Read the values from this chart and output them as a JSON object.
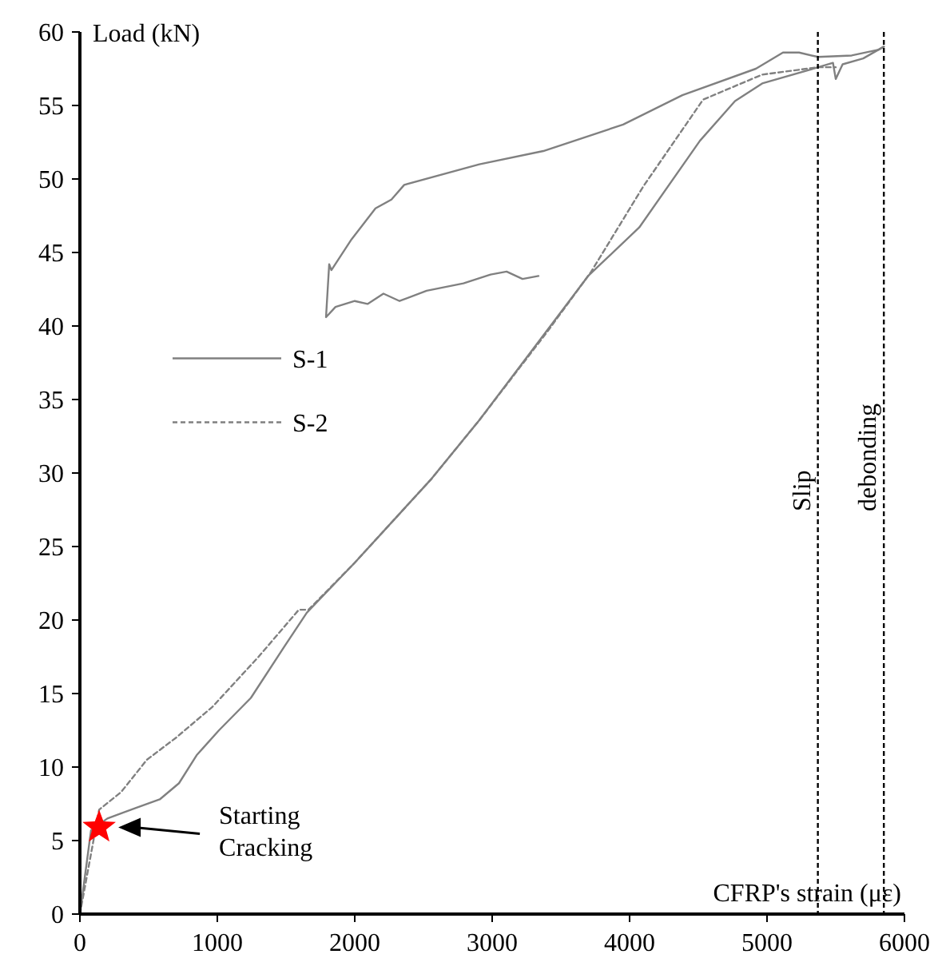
{
  "chart_data": {
    "type": "line",
    "xlabel": "CFRP's strain (με)",
    "ylabel": "Load (kN)",
    "xlim": [
      0,
      6000
    ],
    "xticks": [
      0,
      1000,
      2000,
      3000,
      4000,
      5000,
      6000
    ],
    "ylim": [
      0,
      60
    ],
    "yticks": [
      0,
      5,
      10,
      15,
      20,
      25,
      30,
      35,
      40,
      45,
      50,
      55,
      60
    ],
    "grid": false,
    "legend": "left",
    "series": [
      {
        "name": "S-1",
        "color": "#808080",
        "line_style": "solid",
        "x": [
          0,
          81,
          200,
          400,
          581,
          721,
          849,
          1012,
          1244,
          1488,
          1651,
          2000,
          2558,
          2907,
          3698,
          4070,
          4512,
          4767,
          4965,
          5372,
          5480,
          5500,
          5550,
          5700,
          5850
        ],
        "values": [
          0,
          5.7,
          6.5,
          7.2,
          7.8,
          8.9,
          10.8,
          12.5,
          14.7,
          18.2,
          20.5,
          23.9,
          29.6,
          33.6,
          43.4,
          46.7,
          52.6,
          55.3,
          56.5,
          57.6,
          57.9,
          56.8,
          57.8,
          58.2,
          59
        ]
      },
      {
        "name": "S-2",
        "color": "#808080",
        "line_style": "dashed",
        "x": [
          0,
          140,
          300,
          488,
          700,
          965,
          1300,
          1593,
          1663,
          2000,
          2558,
          2907,
          3400,
          3721,
          4100,
          4535,
          4965,
          5372,
          5500
        ],
        "values": [
          0,
          7.1,
          8.3,
          10.5,
          12.0,
          14.1,
          17.5,
          20.7,
          20.7,
          23.9,
          29.6,
          33.6,
          39.6,
          43.7,
          49.5,
          55.4,
          57.1,
          57.6,
          57.6
        ]
      },
      {
        "color": "#808080",
        "line_style": "solid",
        "x": [
          3337,
          3221,
          3105,
          2988,
          2791,
          2523,
          2326,
          2209,
          2093,
          2000,
          1860,
          1791,
          1814,
          1830,
          1977,
          2151,
          2267,
          2360,
          2907,
          3372,
          3953,
          4384,
          4919,
          5116,
          5233,
          5372,
          5616,
          5814,
          5850
        ],
        "values": [
          43.4,
          43.2,
          43.7,
          43.5,
          42.9,
          42.4,
          41.7,
          42.2,
          41.5,
          41.7,
          41.3,
          40.6,
          44.2,
          43.8,
          45.9,
          48.0,
          48.6,
          49.6,
          51.0,
          51.9,
          53.7,
          55.7,
          57.5,
          58.6,
          58.6,
          58.3,
          58.4,
          58.8,
          59
        ]
      },
      {
        "type": "scatter",
        "marker": "star",
        "color": "#ff0000",
        "x": [
          140
        ],
        "values": [
          5.9
        ]
      }
    ],
    "ref_lines": [
      {
        "axis": "x",
        "value": 5370,
        "label": "Slip",
        "color": "#000000",
        "line_style": "dashed"
      },
      {
        "axis": "x",
        "value": 5850,
        "label": "debonding",
        "color": "#000000",
        "line_style": "dashed"
      }
    ],
    "annotations": [
      "Starting\nCracking"
    ]
  }
}
